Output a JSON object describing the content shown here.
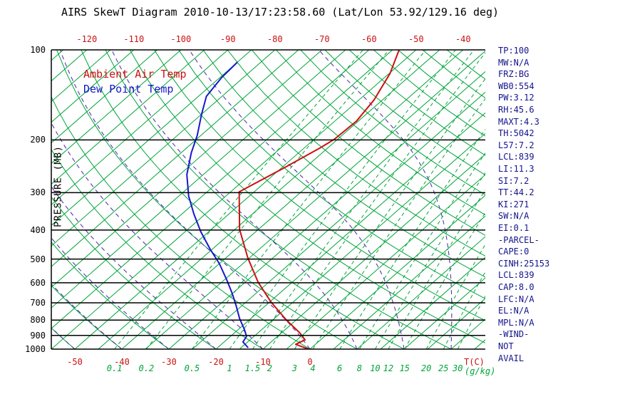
{
  "title": "AIRS SkewT Diagram 2010-10-13/17:23:58.60 (Lat/Lon 53.92/129.16 deg)",
  "legend": {
    "ambient_label": "Ambient Air Temp",
    "dewpoint_label": "Dew Point Temp"
  },
  "axes": {
    "y_label": "PRESSURE (MB)",
    "pressure_ticks": [
      100,
      200,
      300,
      400,
      500,
      600,
      700,
      800,
      900,
      1000
    ],
    "top_temp_ticks": [
      -120,
      -110,
      -100,
      -90,
      -80,
      -70,
      -60,
      -50,
      -40
    ],
    "bottom_temp_ticks": [
      -50,
      -40,
      -30,
      -20,
      -10,
      0
    ],
    "mixing_ratio_ticks": [
      0.1,
      0.2,
      0.5,
      1,
      1.5,
      2,
      3,
      4,
      6,
      8,
      10,
      12,
      15,
      20,
      25,
      30
    ],
    "bottom_temp_unit": "T(C)",
    "mixing_unit": "(g/kg)"
  },
  "colors": {
    "grid_green": "#00a53a",
    "moist_purple": "#5a35b4",
    "ambient_red": "#cc1111",
    "dewpoint_blue": "#1818cc",
    "stats_navy": "#14148c",
    "axis_black": "#000000"
  },
  "stats": [
    "TP:100",
    "MW:N/A",
    "FRZ:BG",
    "WB0:554",
    "PW:3.12",
    "RH:45.6",
    "MAXT:4.3",
    "TH:5042",
    "L57:7.2",
    "LCL:839",
    "LI:11.3",
    "SI:7.2",
    "TT:44.2",
    "KI:271",
    "SW:N/A",
    "EI:0.1",
    "-PARCEL-",
    "CAPE:0",
    "CINH:25153",
    "LCL:839",
    "CAP:8.0",
    "LFC:N/A",
    "EL:N/A",
    "MPL:N/A",
    "-WIND-",
    "NOT",
    "AVAIL"
  ],
  "chart_data": {
    "type": "line",
    "variant": "skew-t-log-p",
    "title": "AIRS SkewT Diagram 2010-10-13/17:23:58.60 (Lat/Lon 53.92/129.16 deg)",
    "xlabel": "T(C)",
    "ylabel": "PRESSURE (MB)",
    "pressure_range_mb": [
      100,
      1000
    ],
    "pressure_scale": "log",
    "top_axis_temps_c": [
      -120,
      -110,
      -100,
      -90,
      -80,
      -70,
      -60,
      -50,
      -40
    ],
    "bottom_axis_temps_c": [
      -50,
      -40,
      -30,
      -20,
      -10,
      0
    ],
    "mixing_ratio_lines_g_kg": [
      0.1,
      0.2,
      0.5,
      1,
      1.5,
      2,
      3,
      4,
      6,
      8,
      10,
      12,
      15,
      20,
      25,
      30
    ],
    "grid": {
      "isotherms_c": {
        "min": -125,
        "max": 35,
        "step": 5
      },
      "dry_adiabats_c": {
        "min": -60,
        "max": 170,
        "step": 10
      },
      "moist_adiabats_c": {
        "min": -60,
        "max": 40,
        "step": 10
      },
      "mixing_ratio_g_kg": [
        0.1,
        0.2,
        0.5,
        1,
        1.5,
        2,
        3,
        4,
        6,
        8,
        10,
        12,
        15,
        20,
        25,
        30
      ]
    },
    "series": [
      {
        "id": "ambient-temp-line",
        "name": "Ambient Air Temp",
        "color": "#cc1111",
        "points_p_t": [
          [
            100,
            -53.6
          ],
          [
            120,
            -49.8
          ],
          [
            147,
            -46.8
          ],
          [
            173,
            -45.4
          ],
          [
            199,
            -45.7
          ],
          [
            212,
            -46.6
          ],
          [
            250,
            -49.6
          ],
          [
            298,
            -53.2
          ],
          [
            398,
            -44.0
          ],
          [
            496,
            -35.3
          ],
          [
            597,
            -27.3
          ],
          [
            696,
            -19.7
          ],
          [
            799,
            -12.1
          ],
          [
            881,
            -6.2
          ],
          [
            931,
            -3.3
          ],
          [
            964,
            -4.2
          ],
          [
            1000,
            -0.3
          ]
        ]
      },
      {
        "id": "dew-point-line",
        "name": "Dew Point Temp",
        "color": "#1818cc",
        "points_p_t": [
          [
            110,
            -85.0
          ],
          [
            124,
            -84.6
          ],
          [
            143,
            -83.3
          ],
          [
            164,
            -80.0
          ],
          [
            193,
            -75.8
          ],
          [
            221,
            -72.8
          ],
          [
            261,
            -68.5
          ],
          [
            308,
            -62.9
          ],
          [
            353,
            -57.5
          ],
          [
            405,
            -51.7
          ],
          [
            464,
            -45.4
          ],
          [
            518,
            -40.0
          ],
          [
            584,
            -34.7
          ],
          [
            652,
            -30.0
          ],
          [
            711,
            -26.5
          ],
          [
            790,
            -22.4
          ],
          [
            862,
            -18.6
          ],
          [
            906,
            -16.6
          ],
          [
            946,
            -16.0
          ],
          [
            989,
            -13.5
          ]
        ]
      }
    ]
  }
}
